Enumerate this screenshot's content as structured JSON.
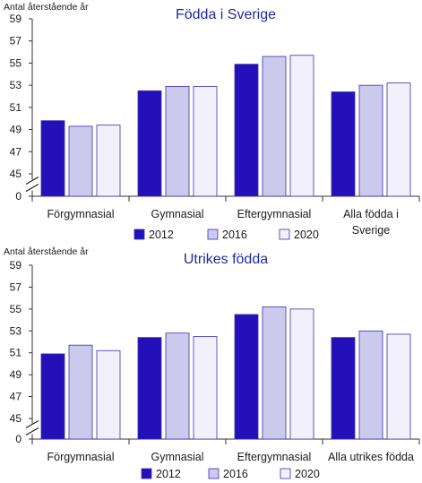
{
  "chart_data": [
    {
      "type": "bar",
      "title": "Födda i Sverige",
      "ylabel": "Antal återstående år",
      "ylim": [
        45,
        59
      ],
      "yticks": [
        "59",
        "57",
        "55",
        "53",
        "51",
        "49",
        "47",
        "45",
        "0"
      ],
      "axis_break": true,
      "categories": [
        "Förgymnasial",
        "Gymnasial",
        "Eftergymnasial",
        "Alla födda i Sverige"
      ],
      "series": [
        {
          "name": "2012",
          "color": "#2410b8",
          "values": [
            49.8,
            52.5,
            54.9,
            52.4
          ]
        },
        {
          "name": "2016",
          "color": "#cccaec",
          "values": [
            49.3,
            52.9,
            55.6,
            53.0
          ]
        },
        {
          "name": "2020",
          "color": "#f2f1fb",
          "values": [
            49.4,
            52.9,
            55.7,
            53.2
          ]
        }
      ],
      "legend": "bottom"
    },
    {
      "type": "bar",
      "title": "Utrikes födda",
      "ylabel": "Antal återstående år",
      "ylim": [
        45,
        59
      ],
      "yticks": [
        "59",
        "57",
        "55",
        "53",
        "51",
        "49",
        "47",
        "45",
        "0"
      ],
      "axis_break": true,
      "categories": [
        "Förgymnasial",
        "Gymnasial",
        "Eftergymnasial",
        "Alla utrikes födda"
      ],
      "series": [
        {
          "name": "2012",
          "color": "#2410b8",
          "values": [
            50.9,
            52.4,
            54.5,
            52.4
          ]
        },
        {
          "name": "2016",
          "color": "#cccaec",
          "values": [
            51.7,
            52.8,
            55.2,
            53.0
          ]
        },
        {
          "name": "2020",
          "color": "#f2f1fb",
          "values": [
            51.2,
            52.5,
            55.0,
            52.7
          ]
        }
      ],
      "legend": "bottom"
    }
  ]
}
